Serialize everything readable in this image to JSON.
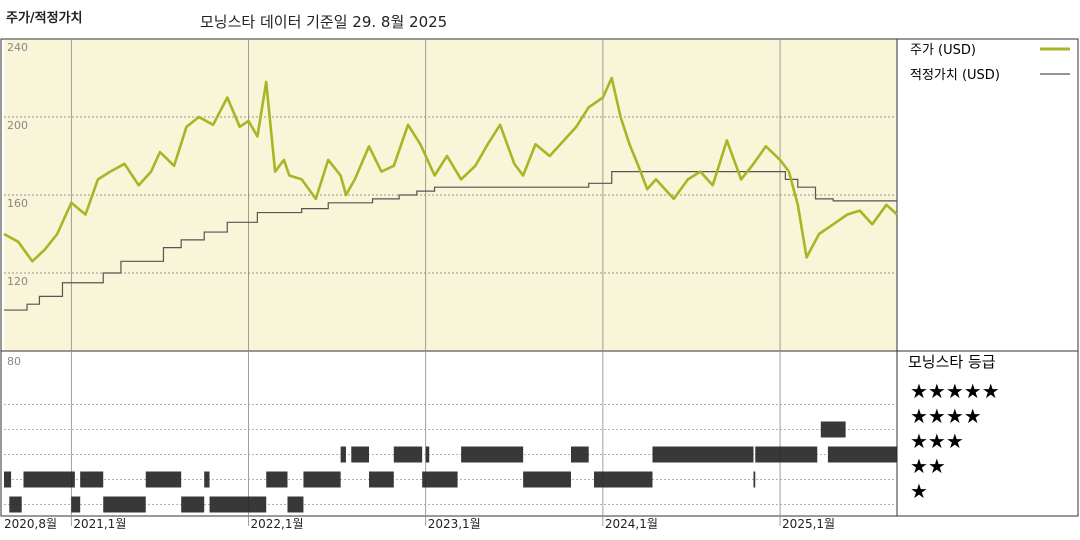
{
  "header": {
    "title": "주가/적정가치",
    "subtitle": "모닝스타 데이터 기준일 29. 8월 2025"
  },
  "legend": {
    "price": "주가 (USD)",
    "fair_value": "적정가치 (USD)",
    "rating_title": "모닝스타 등급",
    "stars": [
      "★★★★★",
      "★★★★",
      "★★★",
      "★★",
      "★"
    ]
  },
  "colors": {
    "price_line": "#a8b525",
    "fair_value_line": "#555555",
    "upper_bg": "#f8f5d8",
    "rating_bar": "#222222"
  },
  "chart_data": {
    "type": "line",
    "title": "주가/적정가치",
    "ylim": [
      80,
      240
    ],
    "yticks": [
      80,
      120,
      160,
      200,
      240
    ],
    "x_range": [
      "2020-08",
      "2025-08-29"
    ],
    "x_ticks": [
      "2020,8월",
      "2021,1월",
      "2022,1월",
      "2023,1월",
      "2024,1월",
      "2025,1월"
    ],
    "x_tick_positions": [
      2020.62,
      2021.0,
      2022.0,
      2023.0,
      2024.0,
      2025.0
    ],
    "series": [
      {
        "name": "주가 (USD)",
        "x": [
          2020.62,
          2020.7,
          2020.78,
          2020.85,
          2020.92,
          2021.0,
          2021.08,
          2021.15,
          2021.22,
          2021.3,
          2021.38,
          2021.45,
          2021.5,
          2021.58,
          2021.65,
          2021.72,
          2021.8,
          2021.88,
          2021.95,
          2022.0,
          2022.05,
          2022.1,
          2022.15,
          2022.2,
          2022.23,
          2022.3,
          2022.38,
          2022.45,
          2022.52,
          2022.55,
          2022.6,
          2022.68,
          2022.75,
          2022.82,
          2022.9,
          2022.97,
          2023.05,
          2023.12,
          2023.2,
          2023.28,
          2023.35,
          2023.42,
          2023.5,
          2023.55,
          2023.62,
          2023.7,
          2023.78,
          2023.85,
          2023.92,
          2024.0,
          2024.05,
          2024.1,
          2024.15,
          2024.2,
          2024.25,
          2024.3,
          2024.4,
          2024.48,
          2024.55,
          2024.62,
          2024.7,
          2024.78,
          2024.85,
          2024.92,
          2025.0,
          2025.05,
          2025.1,
          2025.15,
          2025.22,
          2025.3,
          2025.38,
          2025.45,
          2025.52,
          2025.6,
          2025.66
        ],
        "y": [
          140,
          136,
          126,
          132,
          140,
          156,
          150,
          168,
          172,
          176,
          165,
          172,
          182,
          175,
          195,
          200,
          196,
          210,
          195,
          198,
          190,
          218,
          172,
          178,
          170,
          168,
          158,
          178,
          170,
          160,
          168,
          185,
          172,
          175,
          196,
          186,
          170,
          180,
          168,
          175,
          186,
          196,
          176,
          170,
          186,
          180,
          188,
          195,
          205,
          210,
          220,
          200,
          186,
          175,
          163,
          168,
          158,
          168,
          172,
          165,
          188,
          168,
          176,
          185,
          178,
          172,
          155,
          128,
          140,
          145,
          150,
          152,
          145,
          155,
          150
        ]
      },
      {
        "name": "적정가치 (USD)",
        "x": [
          2020.62,
          2020.75,
          2020.82,
          2020.95,
          2021.18,
          2021.28,
          2021.52,
          2021.62,
          2021.75,
          2021.88,
          2022.05,
          2022.3,
          2022.45,
          2022.7,
          2022.85,
          2022.95,
          2023.05,
          2023.25,
          2023.45,
          2023.7,
          2023.92,
          2024.05,
          2024.2,
          2024.35,
          2024.55,
          2024.82,
          2025.03,
          2025.1,
          2025.2,
          2025.3,
          2025.66
        ],
        "y": [
          101,
          104,
          108,
          115,
          120,
          126,
          133,
          137,
          141,
          146,
          151,
          153,
          156,
          158,
          160,
          162,
          164,
          164,
          164,
          164,
          166,
          172,
          172,
          172,
          172,
          172,
          168,
          164,
          158,
          157,
          157
        ]
      }
    ],
    "ratings": {
      "levels": [
        5,
        4,
        3,
        2,
        1
      ],
      "segments": [
        {
          "stars": 1,
          "start": 2020.65,
          "end": 2020.72
        },
        {
          "stars": 2,
          "start": 2020.62,
          "end": 2020.66
        },
        {
          "stars": 2,
          "start": 2020.73,
          "end": 2021.02
        },
        {
          "stars": 1,
          "start": 2021.0,
          "end": 2021.05
        },
        {
          "stars": 2,
          "start": 2021.05,
          "end": 2021.18
        },
        {
          "stars": 1,
          "start": 2021.18,
          "end": 2021.42
        },
        {
          "stars": 2,
          "start": 2021.42,
          "end": 2021.62
        },
        {
          "stars": 1,
          "start": 2021.62,
          "end": 2021.75
        },
        {
          "stars": 2,
          "start": 2021.75,
          "end": 2021.78
        },
        {
          "stars": 1,
          "start": 2021.78,
          "end": 2022.1
        },
        {
          "stars": 2,
          "start": 2022.1,
          "end": 2022.22
        },
        {
          "stars": 1,
          "start": 2022.22,
          "end": 2022.31
        },
        {
          "stars": 2,
          "start": 2022.31,
          "end": 2022.52
        },
        {
          "stars": 3,
          "start": 2022.52,
          "end": 2022.55
        },
        {
          "stars": 3,
          "start": 2022.58,
          "end": 2022.68
        },
        {
          "stars": 2,
          "start": 2022.68,
          "end": 2022.82
        },
        {
          "stars": 3,
          "start": 2022.82,
          "end": 2022.98
        },
        {
          "stars": 2,
          "start": 2022.98,
          "end": 2023.18
        },
        {
          "stars": 3,
          "start": 2023.0,
          "end": 2023.02
        },
        {
          "stars": 3,
          "start": 2023.2,
          "end": 2023.55
        },
        {
          "stars": 2,
          "start": 2023.55,
          "end": 2023.82
        },
        {
          "stars": 3,
          "start": 2023.82,
          "end": 2023.92
        },
        {
          "stars": 2,
          "start": 2023.95,
          "end": 2024.28
        },
        {
          "stars": 3,
          "start": 2024.28,
          "end": 2024.85
        },
        {
          "stars": 2,
          "start": 2024.85,
          "end": 2024.86
        },
        {
          "stars": 3,
          "start": 2024.86,
          "end": 2025.21
        },
        {
          "stars": 4,
          "start": 2025.23,
          "end": 2025.37
        },
        {
          "stars": 3,
          "start": 2025.27,
          "end": 2025.66
        }
      ]
    }
  }
}
